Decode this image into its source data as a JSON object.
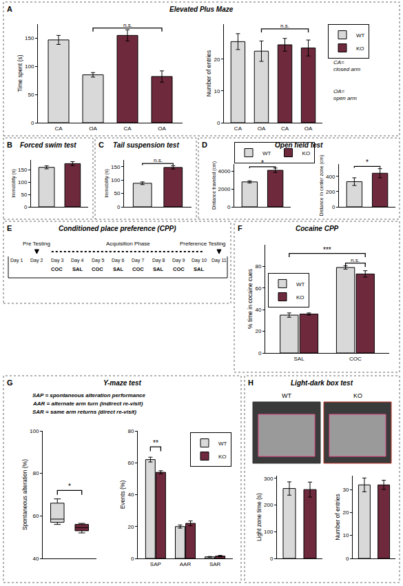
{
  "panels": [
    {
      "letter": "A",
      "title": "Elevated Plus Maze"
    },
    {
      "letter": "B",
      "title": "Forced swim test"
    },
    {
      "letter": "C",
      "title": "Tail suspension test"
    },
    {
      "letter": "D",
      "title": "Open field test"
    },
    {
      "letter": "E",
      "title": "Conditioned place preference (CPP)"
    },
    {
      "letter": "F",
      "title": "Cocaine CPP"
    },
    {
      "letter": "G",
      "title": "Y-maze test",
      "notes": [
        "SAP = spontaneous alteration performance",
        "AAR = alternate arm turn (indirect re-visit)",
        "SAR = same arm returns (direct re-visit)"
      ]
    },
    {
      "letter": "H",
      "title": "Light-dark box test",
      "image_labels": [
        "WT",
        "KO"
      ]
    }
  ],
  "cpp_timeline": {
    "days": [
      "Day 1",
      "Day 2",
      "Day 3",
      "Day 4",
      "Day 5",
      "Day 6",
      "Day 7",
      "Day 8",
      "Day 9",
      "Day 10",
      "Day 11"
    ],
    "treatments": [
      null,
      null,
      "COC",
      "SAL",
      "COC",
      "SAL",
      "COC",
      "SAL",
      "COC",
      "SAL",
      null
    ],
    "phases": [
      {
        "label": "Pre Testing",
        "day": "Day 2"
      },
      {
        "label": "Acquisition Phase",
        "from": "Day 3",
        "to": "Day 10"
      },
      {
        "label": "Preference Testing",
        "day": "Day 11"
      }
    ]
  },
  "chart_data": [
    {
      "panel": "A",
      "type": "bar",
      "y_label": "Time spent (s)",
      "categories": [
        "CA",
        "OA",
        "CA",
        "OA"
      ],
      "series": [
        {
          "name": "WT",
          "color": "#d9d9d9",
          "values": [
            147,
            85,
            null,
            null
          ],
          "errors": [
            8,
            4,
            null,
            null
          ]
        },
        {
          "name": "KO",
          "color": "#6e2a3c",
          "values": [
            null,
            null,
            155,
            82
          ],
          "errors": [
            null,
            null,
            10,
            10
          ]
        }
      ],
      "ylim": [
        0,
        175
      ],
      "yticks": [
        0,
        50,
        100,
        150
      ],
      "brackets": [
        {
          "text": "n.s.",
          "from": [
            1,
            0
          ],
          "to": [
            3,
            1
          ],
          "y": 168
        }
      ]
    },
    {
      "panel": "A",
      "type": "bar",
      "y_label": "Number of entries",
      "categories": [
        "CA",
        "OA",
        "CA",
        "OA"
      ],
      "series": [
        {
          "name": "WT",
          "color": "#d9d9d9",
          "values": [
            25.5,
            22.5,
            null,
            null
          ],
          "errors": [
            2.5,
            3.2,
            null,
            null
          ]
        },
        {
          "name": "KO",
          "color": "#6e2a3c",
          "values": [
            null,
            null,
            24.5,
            23.5
          ],
          "errors": [
            null,
            null,
            2,
            2.5
          ]
        }
      ],
      "ylim": [
        0,
        31
      ],
      "yticks": [
        0,
        10,
        20
      ],
      "legend": "right",
      "notes": [
        "CA=\nclosed arm",
        "OA=\nopen arm"
      ],
      "brackets": [
        {
          "text": "n.s.",
          "from": [
            1,
            0
          ],
          "to": [
            3,
            1
          ],
          "y": 29.5
        }
      ]
    },
    {
      "panel": "B",
      "type": "bar",
      "y_label": "Immobility (s)",
      "tick_labels": "y",
      "series": [
        {
          "name": "WT",
          "color": "#d9d9d9",
          "values": [
            160
          ],
          "errors": [
            6
          ]
        },
        {
          "name": "KO",
          "color": "#6e2a3c",
          "values": [
            175
          ],
          "errors": [
            8
          ]
        }
      ],
      "ylim": [
        0,
        190
      ],
      "yticks": [
        0,
        50,
        100,
        150
      ]
    },
    {
      "panel": "C",
      "type": "bar",
      "y_label": "Immobility (s)",
      "tick_labels": "y",
      "series": [
        {
          "name": "WT",
          "color": "#d9d9d9",
          "values": [
            88
          ],
          "errors": [
            5
          ]
        },
        {
          "name": "KO",
          "color": "#6e2a3c",
          "values": [
            147
          ],
          "errors": [
            6
          ]
        }
      ],
      "ylim": [
        0,
        175
      ],
      "yticks": [
        0,
        50,
        100,
        150
      ],
      "brackets": [
        {
          "text": "n.s.",
          "from": [
            0,
            0
          ],
          "to": [
            0,
            1
          ],
          "y": 162
        }
      ]
    },
    {
      "panel": "D",
      "type": "bar",
      "y_label": "Distance traveled (cm)",
      "tick_labels": "y",
      "series": [
        {
          "name": "WT",
          "color": "#d9d9d9",
          "values": [
            2800
          ],
          "errors": [
            120
          ]
        },
        {
          "name": "KO",
          "color": "#6e2a3c",
          "values": [
            4100
          ],
          "errors": [
            250
          ]
        }
      ],
      "ylim": [
        0,
        4800
      ],
      "yticks": [
        0,
        2000,
        4000
      ],
      "legend": "top left",
      "brackets": [
        {
          "text": "*",
          "from": [
            0,
            0
          ],
          "to": [
            0,
            1
          ],
          "y": 4500
        }
      ]
    },
    {
      "panel": "D",
      "type": "bar",
      "y_label": "Distance in center zone (cm)",
      "tick_labels": "y",
      "series": [
        {
          "name": "WT",
          "color": "#d9d9d9",
          "values": [
            330
          ],
          "errors": [
            50
          ]
        },
        {
          "name": "KO",
          "color": "#6e2a3c",
          "values": [
            440
          ],
          "errors": [
            60
          ]
        }
      ],
      "ylim": [
        0,
        560
      ],
      "yticks": [
        0,
        200,
        400
      ],
      "brackets": [
        {
          "text": "*",
          "from": [
            0,
            0
          ],
          "to": [
            0,
            1
          ],
          "y": 530
        }
      ]
    },
    {
      "panel": "F",
      "type": "bar",
      "y_label": "% time in cocaine cues",
      "categories": [
        "SAL",
        "COC"
      ],
      "series": [
        {
          "name": "WT",
          "color": "#d9d9d9",
          "values": [
            35,
            79
          ],
          "errors": [
            2,
            1.5
          ]
        },
        {
          "name": "KO",
          "color": "#6e2a3c",
          "values": [
            36,
            73
          ],
          "errors": [
            1,
            3
          ]
        }
      ],
      "ylim": [
        0,
        100
      ],
      "yticks": [
        0,
        20,
        40,
        60,
        80
      ],
      "legend": "center left",
      "brackets": [
        {
          "text": "***",
          "from": [
            0,
            0
          ],
          "to": [
            1,
            1
          ],
          "y": 92
        },
        {
          "text": "n.s.",
          "from": [
            1,
            0
          ],
          "to": [
            1,
            1
          ],
          "y": 83
        }
      ]
    },
    {
      "panel": "G",
      "type": "box",
      "y_label": "Spontaneous alteration (%)",
      "tick_labels": "y",
      "series": [
        {
          "name": "WT",
          "color": "#d9d9d9",
          "box": {
            "min": 56,
            "q1": 57,
            "median": 58.5,
            "q3": 66,
            "max": 68
          }
        },
        {
          "name": "KO",
          "color": "#6e2a3c",
          "box": {
            "min": 52,
            "q1": 53,
            "median": 54.5,
            "q3": 56,
            "max": 56.5
          }
        }
      ],
      "ylim": [
        40,
        100
      ],
      "yticks": [
        40,
        60,
        80,
        100
      ],
      "brackets": [
        {
          "text": "*",
          "from": [
            0,
            0
          ],
          "to": [
            0,
            1
          ],
          "y": 72
        }
      ]
    },
    {
      "panel": "G",
      "type": "bar",
      "y_label": "Events (%)",
      "categories": [
        "SAP",
        "AAR",
        "SAR"
      ],
      "series": [
        {
          "name": "WT",
          "color": "#d9d9d9",
          "values": [
            62,
            20,
            1
          ],
          "errors": [
            1.5,
            1,
            0.2
          ]
        },
        {
          "name": "KO",
          "color": "#6e2a3c",
          "values": [
            54,
            22,
            1.5
          ],
          "errors": [
            1,
            1.5,
            0.4
          ]
        }
      ],
      "ylim": [
        0,
        80
      ],
      "yticks": [
        0,
        20,
        40,
        60,
        80
      ],
      "legend": "top right",
      "brackets": [
        {
          "text": "**",
          "from": [
            0,
            0
          ],
          "to": [
            0,
            1
          ],
          "y": 70
        }
      ]
    },
    {
      "panel": "H",
      "type": "bar",
      "y_label": "Light zone time (s)",
      "tick_labels": "y",
      "series": [
        {
          "name": "WT",
          "color": "#d9d9d9",
          "values": [
            262
          ],
          "errors": [
            25
          ]
        },
        {
          "name": "KO",
          "color": "#6e2a3c",
          "values": [
            258
          ],
          "errors": [
            28
          ]
        }
      ],
      "ylim": [
        0,
        310
      ],
      "yticks": [
        0,
        100,
        200,
        300
      ]
    },
    {
      "panel": "H",
      "type": "bar",
      "y_label": "Number of entries",
      "tick_labels": "y",
      "series": [
        {
          "name": "WT",
          "color": "#d9d9d9",
          "values": [
            32
          ],
          "errors": [
            3
          ]
        },
        {
          "name": "KO",
          "color": "#6e2a3c",
          "values": [
            32
          ],
          "errors": [
            2
          ]
        }
      ],
      "ylim": [
        0,
        36
      ],
      "yticks": [
        0,
        10,
        20,
        30
      ]
    }
  ]
}
